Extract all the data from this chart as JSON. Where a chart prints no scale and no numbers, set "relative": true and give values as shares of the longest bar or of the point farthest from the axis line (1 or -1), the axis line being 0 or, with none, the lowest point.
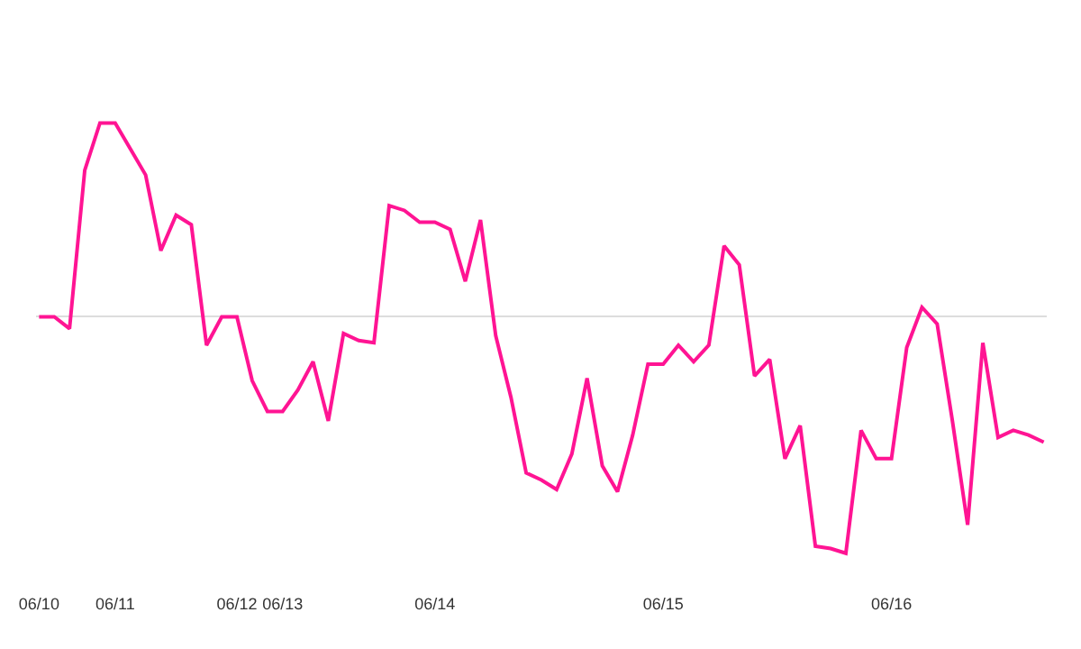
{
  "chart_data": {
    "type": "line",
    "relative": true,
    "color": "#ff1493",
    "marker": "none",
    "categories": [
      "06/10",
      null,
      null,
      null,
      null,
      "06/11",
      null,
      null,
      null,
      null,
      null,
      null,
      null,
      "06/12",
      null,
      null,
      "06/13",
      null,
      null,
      null,
      null,
      null,
      null,
      null,
      null,
      null,
      "06/14",
      null,
      null,
      null,
      null,
      null,
      null,
      null,
      null,
      null,
      null,
      null,
      null,
      null,
      null,
      "06/15",
      null,
      null,
      null,
      null,
      null,
      null,
      null,
      null,
      null,
      null,
      null,
      null,
      null,
      null,
      "06/16",
      null,
      null,
      null,
      null,
      null,
      null,
      null,
      null,
      null,
      null
    ],
    "values": [
      0,
      0,
      -0.05,
      0.62,
      0.82,
      0.82,
      0.71,
      0.6,
      0.28,
      0.43,
      0.39,
      -0.12,
      0,
      0,
      -0.27,
      -0.4,
      -0.4,
      -0.31,
      -0.19,
      -0.44,
      -0.07,
      -0.1,
      -0.11,
      0.47,
      0.45,
      0.4,
      0.4,
      0.37,
      0.15,
      0.41,
      -0.08,
      -0.34,
      -0.66,
      -0.69,
      -0.73,
      -0.58,
      -0.26,
      -0.63,
      -0.74,
      -0.5,
      -0.2,
      -0.2,
      -0.12,
      -0.19,
      -0.12,
      0.3,
      0.22,
      -0.25,
      -0.18,
      -0.6,
      -0.46,
      -0.97,
      -0.98,
      -1,
      -0.48,
      -0.6,
      -0.6,
      -0.13,
      0.04,
      -0.03,
      -0.44,
      -0.88,
      -0.11,
      -0.51,
      -0.48,
      -0.5,
      -0.53
    ]
  }
}
